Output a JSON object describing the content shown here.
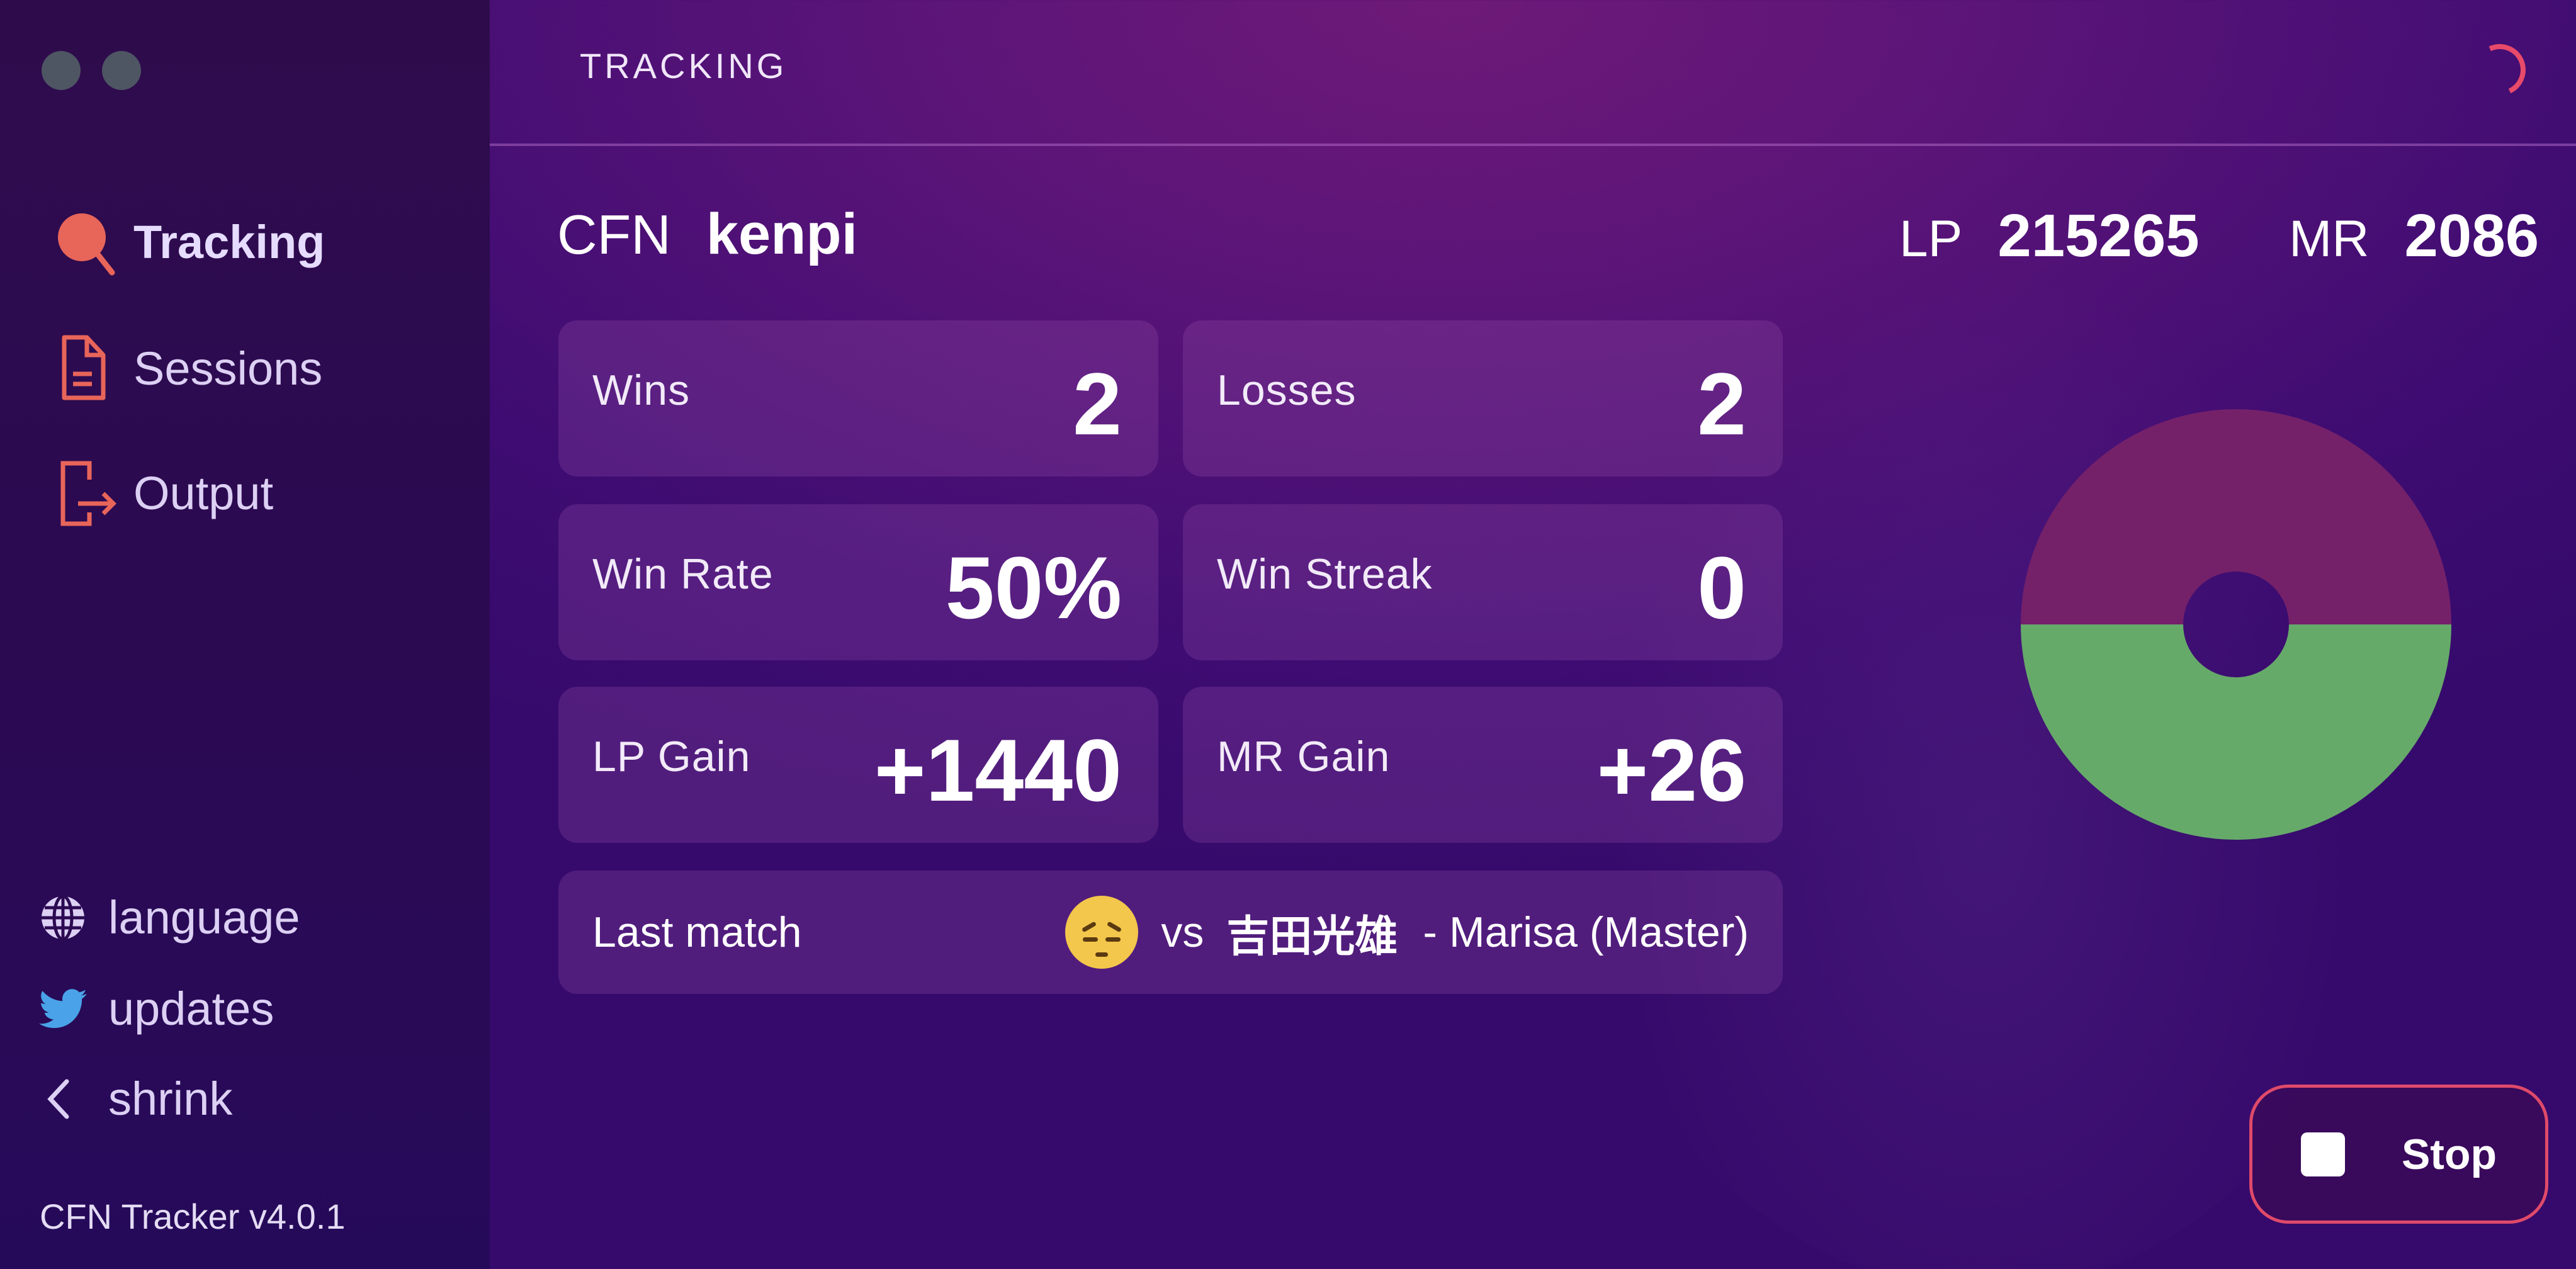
{
  "window": {
    "controls": [
      "close",
      "minimize"
    ]
  },
  "sidebar": {
    "items": [
      {
        "label": "Tracking",
        "icon": "search-icon",
        "active": true
      },
      {
        "label": "Sessions",
        "icon": "document-icon",
        "active": false
      },
      {
        "label": "Output",
        "icon": "export-icon",
        "active": false
      }
    ],
    "footer": [
      {
        "label": "language",
        "icon": "globe-icon"
      },
      {
        "label": "updates",
        "icon": "twitter-icon"
      },
      {
        "label": "shrink",
        "icon": "chevron-left-icon"
      }
    ],
    "version": "CFN Tracker v4.0.1"
  },
  "header": {
    "title": "TRACKING",
    "status_icon": "loading-spinner-icon"
  },
  "player": {
    "cfn_label": "CFN",
    "cfn": "kenpi",
    "lp_label": "LP",
    "lp": "215265",
    "mr_label": "MR",
    "mr": "2086"
  },
  "stats": [
    {
      "label": "Wins",
      "value": "2"
    },
    {
      "label": "Losses",
      "value": "2"
    },
    {
      "label": "Win Rate",
      "value": "50%"
    },
    {
      "label": "Win Streak",
      "value": "0"
    },
    {
      "label": "LP Gain",
      "value": "+1440"
    },
    {
      "label": "MR Gain",
      "value": "+26"
    }
  ],
  "last_match": {
    "label": "Last match",
    "result_icon": "pensive-face-icon",
    "vs": "vs",
    "opponent": "吉田光雄",
    "detail": "- Marisa (Master)"
  },
  "donut": {
    "wins": 2,
    "losses": 2,
    "colors": {
      "wins": "#66aa6a",
      "losses": "#74216a",
      "hole": "#4a0e72"
    }
  },
  "controls": {
    "stop_label": "Stop"
  },
  "colors": {
    "accent": "#e8655a",
    "stop_border": "#e04a6a",
    "twitter": "#4aa3e8"
  }
}
